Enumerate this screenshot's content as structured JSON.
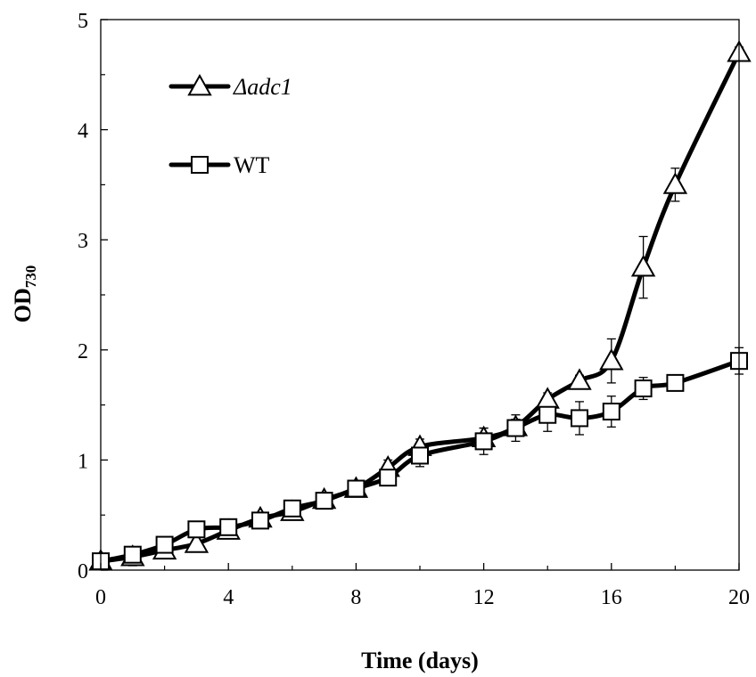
{
  "chart_data": {
    "type": "line",
    "xlabel": "Time (days)",
    "ylabel": {
      "main": "OD",
      "sub": "730"
    },
    "xlim": [
      0,
      20
    ],
    "ylim": [
      0,
      5
    ],
    "xticks": [
      0,
      4,
      8,
      12,
      16,
      20
    ],
    "yticks": [
      0,
      1,
      2,
      3,
      4,
      5
    ],
    "grid": false,
    "legend_position": "top-left",
    "series": [
      {
        "name": "Δadc1",
        "marker": "triangle",
        "italic": true,
        "x": [
          0,
          1,
          2,
          3,
          4,
          5,
          6,
          7,
          8,
          9,
          10,
          12,
          13,
          14,
          15,
          16,
          17,
          18,
          20
        ],
        "y": [
          0.08,
          0.12,
          0.18,
          0.24,
          0.36,
          0.47,
          0.53,
          0.64,
          0.74,
          0.93,
          1.12,
          1.2,
          1.3,
          1.55,
          1.72,
          1.9,
          2.75,
          3.5,
          4.7
        ],
        "error": [
          0.02,
          0.08,
          0.03,
          0.03,
          0.03,
          0.05,
          0.04,
          0.06,
          0.07,
          0.07,
          0.07,
          0.09,
          0.07,
          0.06,
          0.05,
          0.2,
          0.28,
          0.15,
          0.05
        ]
      },
      {
        "name": "WT",
        "marker": "square",
        "italic": false,
        "x": [
          0,
          1,
          2,
          3,
          4,
          5,
          6,
          7,
          8,
          9,
          10,
          12,
          13,
          14,
          15,
          16,
          17,
          18,
          20
        ],
        "y": [
          0.08,
          0.14,
          0.23,
          0.37,
          0.39,
          0.45,
          0.56,
          0.63,
          0.74,
          0.84,
          1.04,
          1.17,
          1.29,
          1.41,
          1.38,
          1.44,
          1.65,
          1.7,
          1.9
        ],
        "error": [
          0.02,
          0.03,
          0.03,
          0.03,
          0.04,
          0.04,
          0.04,
          0.05,
          0.05,
          0.05,
          0.1,
          0.12,
          0.12,
          0.15,
          0.15,
          0.14,
          0.1,
          0.04,
          0.12
        ]
      }
    ]
  },
  "colors": {
    "line": "#000000",
    "marker_fill": "#ffffff"
  }
}
